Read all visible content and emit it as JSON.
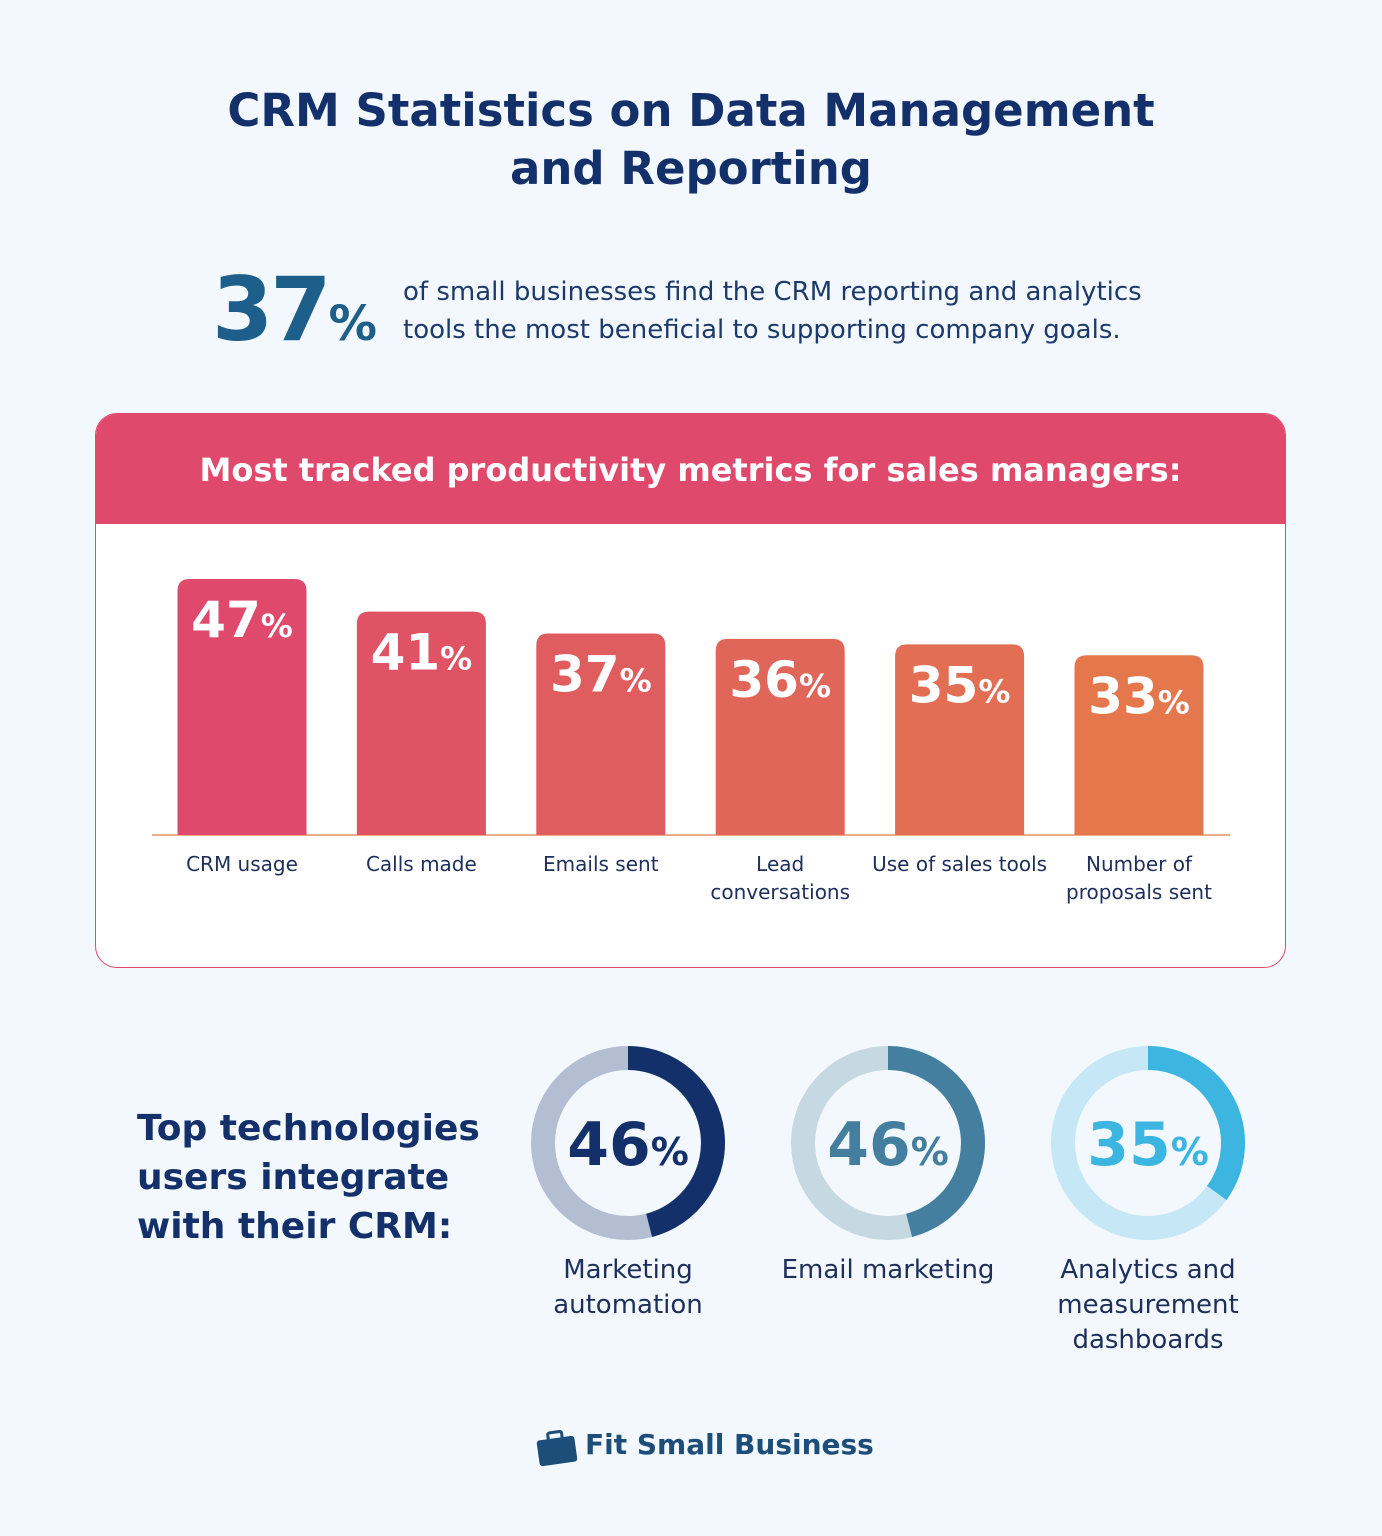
{
  "header": {
    "title": "CRM Statistics on Data Management and Reporting"
  },
  "highlight": {
    "value_label": "37%",
    "text": "of small businesses find the CRM reporting and analytics tools the most beneficial to supporting company goals."
  },
  "chart_data": [
    {
      "type": "bar",
      "title": "Most tracked productivity metrics for sales managers:",
      "categories": [
        "CRM usage",
        "Calls made",
        "Emails sent",
        "Lead conversations",
        "Use of sales tools",
        "Number of proposals sent"
      ],
      "values": [
        47,
        41,
        37,
        36,
        35,
        33
      ],
      "value_labels": [
        "47%",
        "41%",
        "37%",
        "36%",
        "35%",
        "33%"
      ],
      "colors": [
        "#df4a6c",
        "#df5364",
        "#e05d5f",
        "#e1665a",
        "#e26e54",
        "#e5774d"
      ]
    },
    {
      "type": "donut",
      "title": "Top technologies users integrate with their CRM:",
      "categories": [
        "Marketing automation",
        "Email marketing",
        "Analytics and measurement dashboards"
      ],
      "values": [
        46,
        46,
        35
      ],
      "value_labels": [
        "46%",
        "46%",
        "35%"
      ],
      "colors": [
        "#13306b",
        "#447fa0",
        "#3cb6e0"
      ],
      "track_colors": [
        "#b4bed2",
        "#c6d8e2",
        "#c6e7f5"
      ]
    }
  ],
  "footer": {
    "brand": "Fit Small Business"
  }
}
